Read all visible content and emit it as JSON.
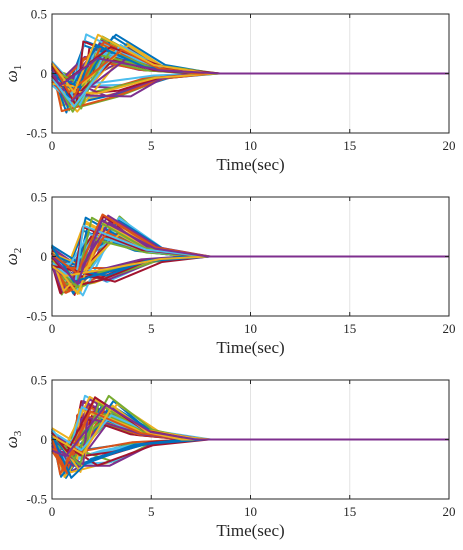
{
  "palette": [
    "#0072BD",
    "#D95319",
    "#EDB120",
    "#7E2F8E",
    "#77AC30",
    "#4DBEEE",
    "#A2142F"
  ],
  "chart_data": [
    {
      "type": "line",
      "ylabel_symbol": "ω",
      "ylabel_sub": "1",
      "xlabel": "Time(sec)",
      "xlim": [
        0,
        20
      ],
      "ylim": [
        -0.5,
        0.5
      ],
      "xticks": [
        0,
        5,
        10,
        15,
        20
      ],
      "yticks": [
        -0.5,
        0,
        0.5
      ],
      "grid": "vertical",
      "series_count": 60,
      "settle_time": 8.5,
      "peak_time_range": [
        1.5,
        4.0
      ],
      "peak_amplitude_range": [
        0.12,
        0.33
      ],
      "seed": 11
    },
    {
      "type": "line",
      "ylabel_symbol": "ω",
      "ylabel_sub": "2",
      "xlabel": "Time(sec)",
      "xlim": [
        0,
        20
      ],
      "ylim": [
        -0.5,
        0.5
      ],
      "xticks": [
        0,
        5,
        10,
        15,
        20
      ],
      "yticks": [
        -0.5,
        0,
        0.5
      ],
      "grid": "vertical",
      "series_count": 60,
      "settle_time": 8.0,
      "peak_time_range": [
        1.5,
        3.5
      ],
      "peak_amplitude_range": [
        0.15,
        0.37
      ],
      "seed": 23
    },
    {
      "type": "line",
      "ylabel_symbol": "ω",
      "ylabel_sub": "3",
      "xlabel": "Time(sec)",
      "xlim": [
        0,
        20
      ],
      "ylim": [
        -0.5,
        0.5
      ],
      "xticks": [
        0,
        5,
        10,
        15,
        20
      ],
      "yticks": [
        -0.5,
        0,
        0.5
      ],
      "grid": "vertical",
      "series_count": 60,
      "settle_time": 8.0,
      "peak_time_range": [
        1.2,
        3.3
      ],
      "peak_amplitude_range": [
        0.15,
        0.37
      ],
      "seed": 37
    }
  ]
}
